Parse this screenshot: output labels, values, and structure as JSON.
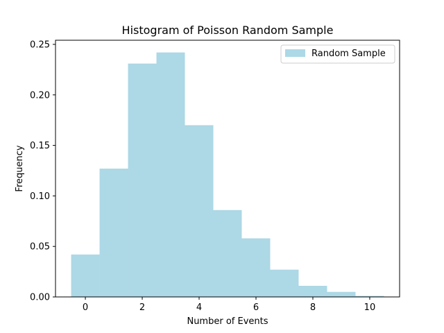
{
  "chart_data": {
    "type": "bar",
    "title": "Histogram of Poisson Random Sample",
    "xlabel": "Number of Events",
    "ylabel": "Frequency",
    "xlim": [
      -1.05,
      11.05
    ],
    "ylim": [
      0,
      0.2541
    ],
    "bin_width": 1,
    "bar_color": "#add8e6",
    "grid": false,
    "legend_position": "top-right",
    "x_ticks": [
      {
        "value": 0,
        "label": "0"
      },
      {
        "value": 2,
        "label": "2"
      },
      {
        "value": 4,
        "label": "4"
      },
      {
        "value": 6,
        "label": "6"
      },
      {
        "value": 8,
        "label": "8"
      },
      {
        "value": 10,
        "label": "10"
      }
    ],
    "y_ticks": [
      {
        "value": 0,
        "label": "0.00"
      },
      {
        "value": 0.05,
        "label": "0.05"
      },
      {
        "value": 0.1,
        "label": "0.10"
      },
      {
        "value": 0.15,
        "label": "0.15"
      },
      {
        "value": 0.2,
        "label": "0.20"
      },
      {
        "value": 0.25,
        "label": "0.25"
      }
    ],
    "series": [
      {
        "name": "Random Sample",
        "x": [
          0,
          1,
          2,
          3,
          4,
          5,
          6,
          7,
          8,
          9,
          10
        ],
        "values": [
          0.042,
          0.127,
          0.231,
          0.242,
          0.17,
          0.086,
          0.058,
          0.027,
          0.011,
          0.005,
          0.001
        ]
      }
    ]
  }
}
